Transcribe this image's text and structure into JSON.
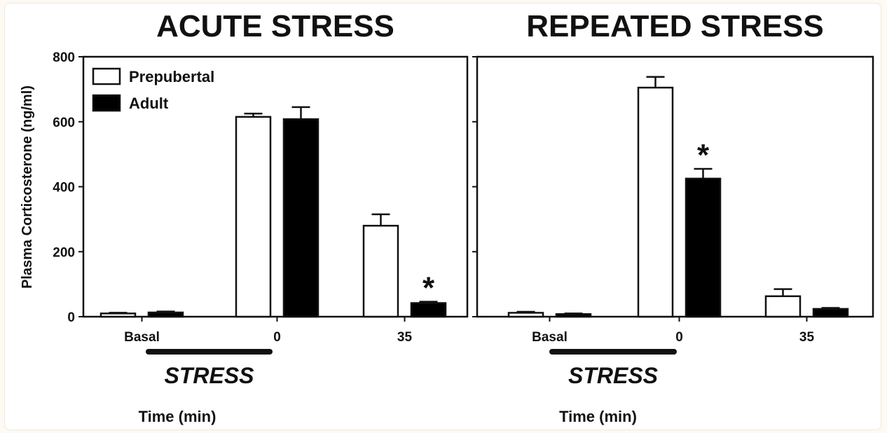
{
  "chart_data": [
    {
      "type": "bar",
      "title": "ACUTE STRESS",
      "xlabel": "Time (min)",
      "ylabel": "Plasma Corticosterone (ng/ml)",
      "ylim": [
        0,
        800
      ],
      "y_ticks": [
        "0",
        "200",
        "400",
        "600",
        "800"
      ],
      "categories": [
        "Basal",
        "0",
        "35"
      ],
      "stress_label": "STRESS",
      "series": [
        {
          "name": "Prepubertal",
          "values": [
            10,
            615,
            280
          ],
          "errors": [
            2,
            10,
            35
          ]
        },
        {
          "name": "Adult",
          "values": [
            13,
            608,
            42
          ],
          "errors": [
            3,
            37,
            4
          ]
        }
      ],
      "significance": [
        {
          "category": "35",
          "series": "Adult",
          "label": "*"
        }
      ],
      "legend": "top-left"
    },
    {
      "type": "bar",
      "title": "REPEATED STRESS",
      "xlabel": "Time (min)",
      "ylim": [
        0,
        800
      ],
      "categories": [
        "Basal",
        "0",
        "35"
      ],
      "stress_label": "STRESS",
      "series": [
        {
          "name": "Prepubertal",
          "values": [
            12,
            705,
            63
          ],
          "errors": [
            3,
            33,
            22
          ]
        },
        {
          "name": "Adult",
          "values": [
            8,
            425,
            24
          ],
          "errors": [
            2,
            30,
            3
          ]
        }
      ],
      "significance": [
        {
          "category": "0",
          "series": "Adult",
          "label": "*"
        }
      ]
    }
  ],
  "colors": {
    "prepubertal": "#ffffff",
    "adult": "#000000",
    "ink": "#111111"
  }
}
